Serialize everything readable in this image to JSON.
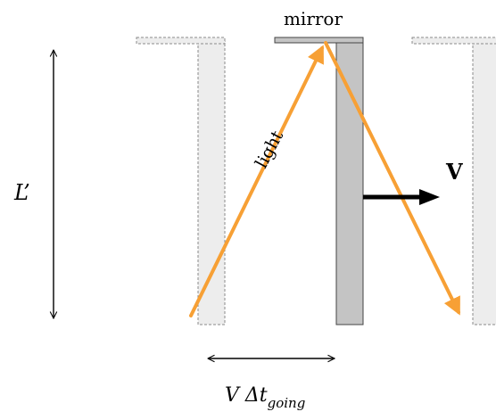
{
  "labels": {
    "mirror": "mirror",
    "light": "light",
    "velocity": "V",
    "length": "L’",
    "distance_main": "V Δt",
    "distance_sub": "going"
  },
  "colors": {
    "light_ray": "#F7A035",
    "moving_mirror": "#C4C4C4",
    "ghost_mirror": "#EDEDED",
    "ghost_outline": "#8A8A8A",
    "arrow": "#000000"
  }
}
